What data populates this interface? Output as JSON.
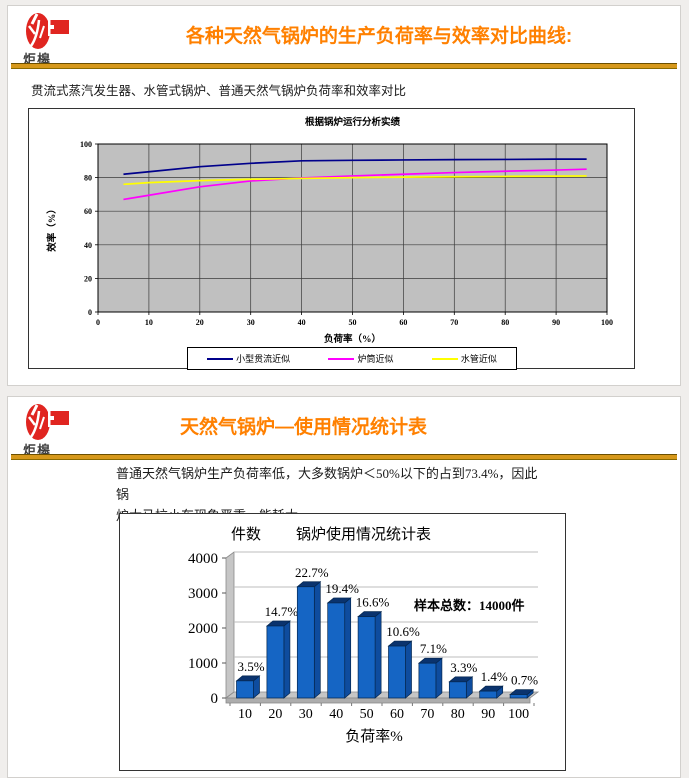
{
  "logo": {
    "text": "炬槔",
    "color": "#E02520"
  },
  "header_rule_color": "#D6981B",
  "slide1": {
    "title": "各种天然气锅炉的生产负荷率与效率对比曲线:",
    "title_color": "#FF8000",
    "subtitle": "贯流式蒸汽发生器、水管式锅炉、普通天然气锅炉负荷率和效率对比"
  },
  "slide2": {
    "title": "天然气锅炉—使用情况统计表",
    "title_color": "#FF8000",
    "body_line1": "普通天然气锅炉生产负荷率低，大多数锅炉＜50%以下的占到73.4%，因此锅",
    "body_line2": "炉大马拉小车现象严重，能耗大"
  },
  "chart_data": [
    {
      "type": "line",
      "title": "根据锅炉运行分析实绩",
      "xlabel": "负荷率（%）",
      "ylabel": "效率（%）",
      "xlim": [
        0,
        100
      ],
      "ylim": [
        0,
        100
      ],
      "xticks": [
        0,
        10,
        20,
        30,
        40,
        50,
        60,
        70,
        80,
        90,
        100
      ],
      "yticks": [
        0,
        20,
        40,
        60,
        80,
        100
      ],
      "plot_bg": "#C0C0C0",
      "grid": true,
      "legend_position": "bottom",
      "x": [
        5,
        10,
        20,
        30,
        40,
        50,
        60,
        70,
        80,
        90,
        96
      ],
      "series": [
        {
          "name": "小型贯流近似",
          "color": "#00008B",
          "values": [
            82,
            83.5,
            86.5,
            88.5,
            90,
            90.3,
            90.5,
            90.7,
            90.8,
            91,
            91
          ]
        },
        {
          "name": "炉筒近似",
          "color": "#FF00FF",
          "values": [
            67,
            69.5,
            74.5,
            78,
            79.8,
            81,
            82,
            83,
            83.8,
            84.5,
            85
          ]
        },
        {
          "name": "水管近似",
          "color": "#FFFF00",
          "values": [
            76,
            77,
            78.2,
            79,
            79.5,
            80,
            80.3,
            80.5,
            80.7,
            80.9,
            81
          ]
        }
      ]
    },
    {
      "type": "bar",
      "title": "锅炉使用情况统计表",
      "ylabel": "件数",
      "xlabel": "负荷率%",
      "categories": [
        10,
        20,
        30,
        40,
        50,
        60,
        70,
        80,
        90,
        100
      ],
      "values": [
        490,
        2058,
        3178,
        2716,
        2324,
        1484,
        994,
        462,
        196,
        98
      ],
      "percent_labels": [
        "3.5%",
        "14.7%",
        "22.7%",
        "19.4%",
        "16.6%",
        "10.6%",
        "7.1%",
        "3.3%",
        "1.4%",
        "0.7%"
      ],
      "annotation": "样本总数：14000件",
      "annotation_color": "#FF2020",
      "ylim": [
        0,
        4000
      ],
      "yticks": [
        0,
        1000,
        2000,
        3000,
        4000
      ],
      "bar_color": "#1565C4",
      "bar_top_color": "#0A336E",
      "bar_side_color": "#0E4C9E"
    }
  ]
}
